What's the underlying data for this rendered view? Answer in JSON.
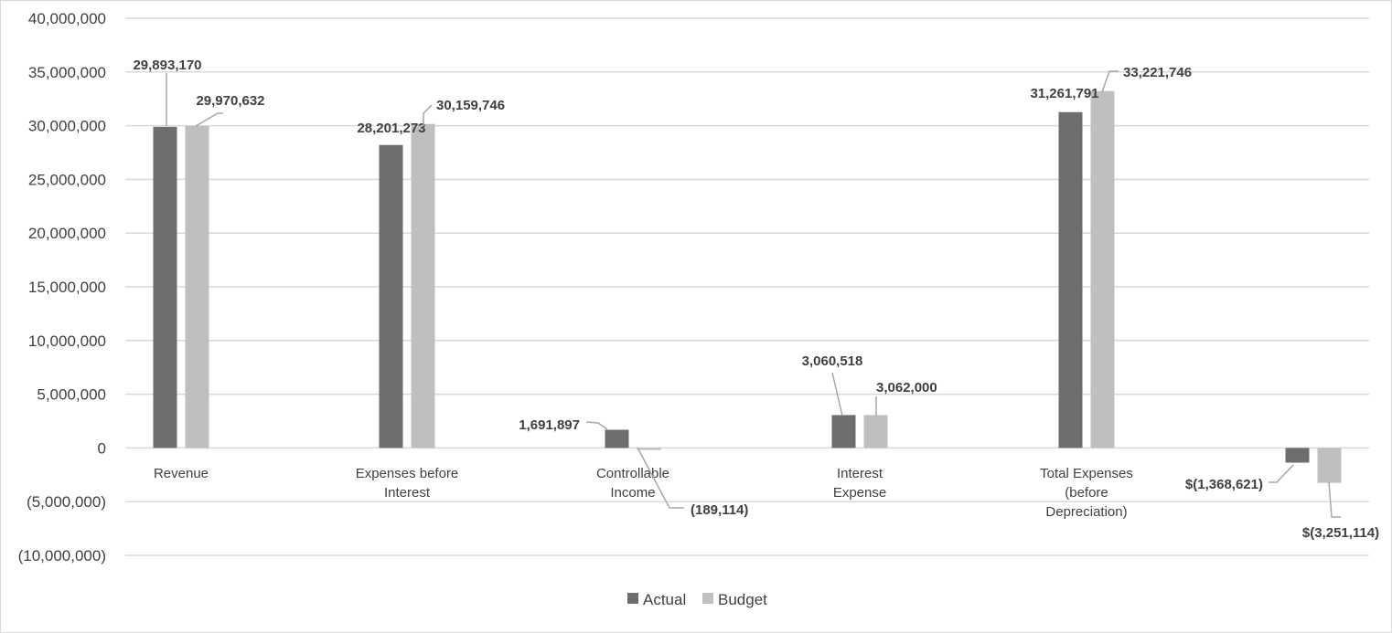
{
  "chart_data": {
    "type": "bar",
    "title": "",
    "xlabel": "",
    "ylabel": "",
    "ylim": [
      -10000000,
      40000000
    ],
    "yticks": [
      {
        "value": 40000000,
        "label": "40,000,000"
      },
      {
        "value": 35000000,
        "label": "35,000,000"
      },
      {
        "value": 30000000,
        "label": "30,000,000"
      },
      {
        "value": 25000000,
        "label": "25,000,000"
      },
      {
        "value": 20000000,
        "label": "20,000,000"
      },
      {
        "value": 15000000,
        "label": "15,000,000"
      },
      {
        "value": 10000000,
        "label": "10,000,000"
      },
      {
        "value": 5000000,
        "label": "5,000,000"
      },
      {
        "value": 0,
        "label": "0"
      },
      {
        "value": -5000000,
        "label": "(5,000,000)"
      },
      {
        "value": -10000000,
        "label": "(10,000,000)"
      }
    ],
    "grid": true,
    "legend_position": "bottom",
    "categories": [
      [
        "Revenue"
      ],
      [
        "Expenses before",
        "Interest"
      ],
      [
        "Controllable",
        "Income"
      ],
      [
        "Interest",
        "Expense"
      ],
      [
        "Total Expenses",
        "(before",
        "Depreciation)"
      ],
      [
        ""
      ]
    ],
    "series": [
      {
        "name": "Actual",
        "color": "#6d6d6d",
        "values": [
          29893170,
          28201273,
          1691897,
          3060518,
          31261791,
          -1368621
        ],
        "labels": [
          "29,893,170",
          "28,201,273",
          "1,691,897",
          "3,060,518",
          "31,261,791",
          "$(1,368,621)"
        ]
      },
      {
        "name": "Budget",
        "color": "#c0bebe",
        "values": [
          29970632,
          30159746,
          -189114,
          3062000,
          33221746,
          -3251114
        ],
        "labels": [
          "29,970,632",
          "30,159,746",
          "(189,114)",
          "3,062,000",
          "33,221,746",
          "$(3,251,114)"
        ]
      }
    ]
  }
}
